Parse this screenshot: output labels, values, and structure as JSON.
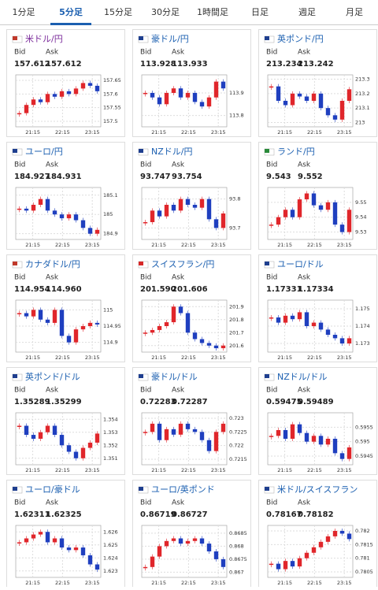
{
  "tabs": {
    "items": [
      "1分足",
      "5分足",
      "15分足",
      "30分足",
      "1時間足",
      "日足",
      "週足",
      "月足"
    ],
    "active": 1
  },
  "labels": {
    "bid": "Bid",
    "ask": "Ask"
  },
  "chart_xticks": [
    "21:15",
    "22:15",
    "23:15"
  ],
  "cards": [
    {
      "title": "米ドル/円",
      "bid": "157.612",
      "ask": "157.612",
      "chart": {
        "type": "candlestick",
        "ylim": [
          157.48,
          157.67
        ],
        "yticks": [
          157.65,
          157.6,
          157.55,
          157.5
        ],
        "closes": [
          157.53,
          157.56,
          157.58,
          157.57,
          157.6,
          157.59,
          157.61,
          157.6,
          157.62,
          157.64,
          157.63,
          157.61
        ]
      }
    },
    {
      "title": "豪ドル/円",
      "bid": "113.928",
      "ask": "113.933",
      "chart": {
        "type": "candlestick",
        "ylim": [
          113.75,
          113.98
        ],
        "yticks": [
          113.9,
          113.8
        ],
        "closes": [
          113.9,
          113.88,
          113.85,
          113.9,
          113.92,
          113.88,
          113.9,
          113.86,
          113.84,
          113.88,
          113.95,
          113.92
        ]
      }
    },
    {
      "title": "英ポンド/円",
      "bid": "213.234",
      "ask": "213.242",
      "chart": {
        "type": "candlestick",
        "ylim": [
          212.97,
          213.33
        ],
        "yticks": [
          213.3,
          213.2,
          213.1,
          213
        ],
        "closes": [
          213.25,
          213.15,
          213.12,
          213.2,
          213.18,
          213.15,
          213.2,
          213.1,
          213.05,
          213.02,
          213.15,
          213.23
        ]
      }
    },
    {
      "title": "ユーロ/円",
      "bid": "184.927",
      "ask": "184.931",
      "chart": {
        "type": "candlestick",
        "ylim": [
          184.87,
          185.14
        ],
        "yticks": [
          185.1,
          185,
          184.9
        ],
        "closes": [
          185.03,
          185.02,
          185.05,
          185.08,
          185.02,
          185.0,
          184.98,
          185.0,
          184.97,
          184.93,
          184.9,
          184.92
        ]
      }
    },
    {
      "title": "NZドル/円",
      "bid": "93.747",
      "ask": "93.754",
      "chart": {
        "type": "candlestick",
        "ylim": [
          93.66,
          93.84
        ],
        "yticks": [
          93.8,
          93.7
        ],
        "closes": [
          93.72,
          93.76,
          93.74,
          93.78,
          93.76,
          93.8,
          93.78,
          93.77,
          93.8,
          93.73,
          93.7,
          93.75
        ]
      }
    },
    {
      "title": "ランド/円",
      "bid": "9.543",
      "ask": "9.552",
      "chart": {
        "type": "candlestick",
        "ylim": [
          9.525,
          9.56
        ],
        "yticks": [
          9.55,
          9.54,
          9.53
        ],
        "closes": [
          9.535,
          9.54,
          9.545,
          9.54,
          9.552,
          9.556,
          9.548,
          9.545,
          9.55,
          9.535,
          9.53,
          9.545
        ]
      }
    },
    {
      "title": "カナダドル/円",
      "bid": "114.954",
      "ask": "114.960",
      "chart": {
        "type": "candlestick",
        "ylim": [
          114.87,
          115.03
        ],
        "yticks": [
          115,
          114.95,
          114.9
        ],
        "closes": [
          114.99,
          114.98,
          115,
          114.97,
          114.96,
          115,
          114.92,
          114.9,
          114.94,
          114.95,
          114.96,
          114.955
        ]
      }
    },
    {
      "title": "スイスフラン/円",
      "bid": "201.590",
      "ask": "201.606",
      "chart": {
        "type": "candlestick",
        "ylim": [
          201.55,
          201.95
        ],
        "yticks": [
          201.9,
          201.8,
          201.7,
          201.6
        ],
        "closes": [
          201.7,
          201.72,
          201.75,
          201.78,
          201.9,
          201.85,
          201.7,
          201.65,
          201.62,
          201.6,
          201.58,
          201.6
        ]
      }
    },
    {
      "title": "ユーロ/ドル",
      "bid": "1.17331",
      "ask": "1.17334",
      "chart": {
        "type": "candlestick",
        "ylim": [
          1.1725,
          1.1755
        ],
        "yticks": [
          1.175,
          1.174,
          1.173
        ],
        "closes": [
          1.1745,
          1.1742,
          1.1746,
          1.1744,
          1.1748,
          1.174,
          1.1742,
          1.1738,
          1.1735,
          1.1733,
          1.173,
          1.1733
        ]
      }
    },
    {
      "title": "英ポンド/ドル",
      "bid": "1.35289",
      "ask": "1.35299",
      "chart": {
        "type": "candlestick",
        "ylim": [
          1.3505,
          1.3545
        ],
        "yticks": [
          1.354,
          1.353,
          1.352,
          1.351
        ],
        "closes": [
          1.3535,
          1.3528,
          1.3525,
          1.353,
          1.3535,
          1.3528,
          1.352,
          1.3515,
          1.351,
          1.3518,
          1.3522,
          1.3529
        ]
      }
    },
    {
      "title": "豪ドル/ドル",
      "bid": "0.72283",
      "ask": "0.72287",
      "chart": {
        "type": "candlestick",
        "ylim": [
          0.7213,
          0.7232
        ],
        "yticks": [
          0.723,
          0.7225,
          0.722,
          0.7215
        ],
        "closes": [
          0.7225,
          0.7228,
          0.7222,
          0.7226,
          0.7224,
          0.7228,
          0.7226,
          0.7225,
          0.7222,
          0.7218,
          0.7225,
          0.7228
        ]
      }
    },
    {
      "title": "NZドル/ドル",
      "bid": "0.59475",
      "ask": "0.59489",
      "chart": {
        "type": "candlestick",
        "ylim": [
          0.5942,
          0.596
        ],
        "yticks": [
          0.5955,
          0.595,
          0.5945
        ],
        "closes": [
          0.5952,
          0.5954,
          0.5951,
          0.5956,
          0.5953,
          0.595,
          0.5952,
          0.5949,
          0.5951,
          0.5946,
          0.5944,
          0.5948
        ]
      }
    },
    {
      "title": "ユーロ/豪ドル",
      "bid": "1.62311",
      "ask": "1.62325",
      "chart": {
        "type": "candlestick",
        "ylim": [
          1.6225,
          1.6265
        ],
        "yticks": [
          1.626,
          1.625,
          1.624,
          1.623
        ],
        "closes": [
          1.6252,
          1.6255,
          1.6258,
          1.626,
          1.6252,
          1.6255,
          1.6248,
          1.6246,
          1.6248,
          1.6242,
          1.6235,
          1.6231
        ]
      }
    },
    {
      "title": "ユーロ/英ポンド",
      "bid": "0.86719",
      "ask": "0.86727",
      "chart": {
        "type": "candlestick",
        "ylim": [
          0.8668,
          0.8688
        ],
        "yticks": [
          0.8685,
          0.868,
          0.8675,
          0.867
        ],
        "closes": [
          0.8672,
          0.8676,
          0.868,
          0.8682,
          0.8683,
          0.8681,
          0.8682,
          0.8683,
          0.8681,
          0.8678,
          0.8675,
          0.8672
        ]
      }
    },
    {
      "title": "米ドル/スイスフラン",
      "bid": "0.78167",
      "ask": "0.78182",
      "chart": {
        "type": "candlestick",
        "ylim": [
          0.7803,
          0.7822
        ],
        "yticks": [
          0.782,
          0.7815,
          0.781,
          0.7805
        ],
        "closes": [
          0.7808,
          0.7806,
          0.7809,
          0.7807,
          0.781,
          0.7812,
          0.7814,
          0.7816,
          0.7818,
          0.782,
          0.7819,
          0.7817
        ]
      }
    }
  ]
}
